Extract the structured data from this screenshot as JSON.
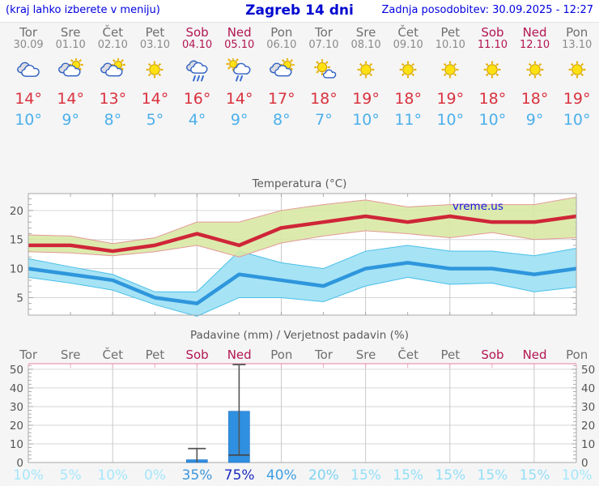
{
  "header": {
    "left_note": "(kraj lahko izberete v meniju)",
    "title": "Zagreb 14 dni",
    "updated": "Zadnja posodobitev: 30.09.2025 - 12:27"
  },
  "colors": {
    "high_temp": "#d9323e",
    "low_temp": "#4cb0ea",
    "weekend": "#b21650",
    "weekday": "#6f6f6f",
    "temp_line_max": "#cf2638",
    "temp_band_max": "#d7e8a2",
    "temp_band_max_edge": "#e49898",
    "temp_line_min": "#2e96dc",
    "temp_band_min": "#a6e3f5",
    "temp_band_min_edge": "#49bfe8",
    "bar_fill": "#2f8fe0",
    "whisker": "#555555",
    "precip_top_axis": "#eba6ba",
    "link_blue": "#1a16e8"
  },
  "days": [
    {
      "name": "Tor",
      "date": "30.09",
      "weekend": false,
      "icon": "cloudy",
      "high": "14°",
      "low": "10°",
      "prob": "10%",
      "prob_color": "#a5e7fa"
    },
    {
      "name": "Sre",
      "date": "01.10",
      "weekend": false,
      "icon": "partly-cloudy",
      "high": "14°",
      "low": "9°",
      "prob": "5%",
      "prob_color": "#a5e7fa"
    },
    {
      "name": "Čet",
      "date": "02.10",
      "weekend": false,
      "icon": "partly-cloudy",
      "high": "13°",
      "low": "8°",
      "prob": "10%",
      "prob_color": "#a5e7fa"
    },
    {
      "name": "Pet",
      "date": "03.10",
      "weekend": false,
      "icon": "sunny",
      "high": "14°",
      "low": "5°",
      "prob": "0%",
      "prob_color": "#a5e7fa"
    },
    {
      "name": "Sob",
      "date": "04.10",
      "weekend": true,
      "icon": "rain",
      "high": "16°",
      "low": "4°",
      "prob": "35%",
      "prob_color": "#3d96da"
    },
    {
      "name": "Ned",
      "date": "05.10",
      "weekend": true,
      "icon": "sun-rain",
      "high": "14°",
      "low": "9°",
      "prob": "75%",
      "prob_color": "#1b2bbd"
    },
    {
      "name": "Pon",
      "date": "06.10",
      "weekend": false,
      "icon": "partly-cloudy",
      "high": "17°",
      "low": "8°",
      "prob": "40%",
      "prob_color": "#3d9fe2"
    },
    {
      "name": "Tor",
      "date": "07.10",
      "weekend": false,
      "icon": "mostly-sunny",
      "high": "18°",
      "low": "7°",
      "prob": "20%",
      "prob_color": "#7fd2f2"
    },
    {
      "name": "Sre",
      "date": "08.10",
      "weekend": false,
      "icon": "sunny",
      "high": "19°",
      "low": "10°",
      "prob": "15%",
      "prob_color": "#92dff7"
    },
    {
      "name": "Čet",
      "date": "09.10",
      "weekend": false,
      "icon": "sunny",
      "high": "18°",
      "low": "11°",
      "prob": "15%",
      "prob_color": "#92dff7"
    },
    {
      "name": "Pet",
      "date": "10.10",
      "weekend": false,
      "icon": "sunny",
      "high": "19°",
      "low": "10°",
      "prob": "15%",
      "prob_color": "#92dff7"
    },
    {
      "name": "Sob",
      "date": "11.10",
      "weekend": true,
      "icon": "sunny",
      "high": "18°",
      "low": "10°",
      "prob": "15%",
      "prob_color": "#92dff7"
    },
    {
      "name": "Ned",
      "date": "12.10",
      "weekend": true,
      "icon": "sunny",
      "high": "18°",
      "low": "9°",
      "prob": "15%",
      "prob_color": "#92dff7"
    },
    {
      "name": "Pon",
      "date": "13.10",
      "weekend": false,
      "icon": "sunny",
      "high": "19°",
      "low": "10°",
      "prob": "10%",
      "prob_color": "#a5e7fa"
    }
  ],
  "temp_chart": {
    "title": "Temperatura (°C)",
    "watermark": "vreme.us"
  },
  "precip_chart": {
    "title": "Padavine (mm) / Verjetnost padavin (%)"
  },
  "chart_data": [
    {
      "type": "line",
      "title": "Temperatura (°C)",
      "categories": [
        "Tor 30.09",
        "Sre 01.10",
        "Čet 02.10",
        "Pet 03.10",
        "Sob 04.10",
        "Ned 05.10",
        "Pon 06.10",
        "Tor 07.10",
        "Sre 08.10",
        "Čet 09.10",
        "Pet 10.10",
        "Sob 11.10",
        "Ned 12.10",
        "Pon 13.10"
      ],
      "series": [
        {
          "name": "max_temp",
          "values": [
            14,
            14,
            13,
            14,
            16,
            14,
            17,
            18,
            19,
            18,
            19,
            18,
            18,
            19
          ]
        },
        {
          "name": "max_band_upper",
          "values": [
            15.8,
            15.6,
            14.3,
            15.3,
            18,
            18,
            20,
            21,
            21.8,
            20.6,
            21,
            21,
            21,
            22.3
          ]
        },
        {
          "name": "max_band_lower",
          "values": [
            12.9,
            12.7,
            12.2,
            12.9,
            14,
            12,
            14.4,
            15.6,
            16.5,
            16,
            15.3,
            16.2,
            15,
            15.3
          ]
        },
        {
          "name": "min_temp",
          "values": [
            10,
            9,
            8,
            5,
            4,
            9,
            8,
            7,
            10,
            11,
            10,
            10,
            9,
            10
          ]
        },
        {
          "name": "min_band_upper",
          "values": [
            11.7,
            10.3,
            9,
            6,
            6,
            13,
            11,
            10,
            13,
            14,
            13,
            13,
            12.2,
            13.5
          ]
        },
        {
          "name": "min_band_lower",
          "values": [
            8.5,
            7.5,
            6.3,
            3.8,
            1.8,
            5,
            5,
            4.3,
            7,
            8.5,
            7.3,
            7.5,
            6,
            6.8
          ]
        }
      ],
      "ylim": [
        2,
        22.9
      ],
      "yticks": [
        5,
        10,
        15,
        20
      ],
      "grid": true,
      "annotations": [
        "vreme.us"
      ]
    },
    {
      "type": "bar",
      "title": "Padavine (mm) / Verjetnost padavin (%)",
      "categories": [
        "Tor",
        "Sre",
        "Čet",
        "Pet",
        "Sob",
        "Ned",
        "Pon",
        "Tor",
        "Sre",
        "Čet",
        "Pet",
        "Sob",
        "Ned",
        "Pon"
      ],
      "values": [
        0,
        0,
        0,
        0,
        1.5,
        27.5,
        0,
        0,
        0,
        0,
        0,
        0,
        0,
        0
      ],
      "whisker_low": [
        null,
        null,
        null,
        null,
        0,
        4,
        null,
        null,
        null,
        null,
        null,
        null,
        null,
        null
      ],
      "whisker_high": [
        null,
        null,
        null,
        null,
        7.5,
        52.5,
        null,
        null,
        null,
        null,
        null,
        null,
        null,
        null
      ],
      "probabilities_pct": [
        10,
        5,
        10,
        0,
        35,
        75,
        40,
        20,
        15,
        15,
        15,
        15,
        15,
        10
      ],
      "ylim": [
        0,
        53
      ],
      "yticks": [
        0,
        10,
        20,
        30,
        40,
        50
      ],
      "grid": true
    }
  ]
}
